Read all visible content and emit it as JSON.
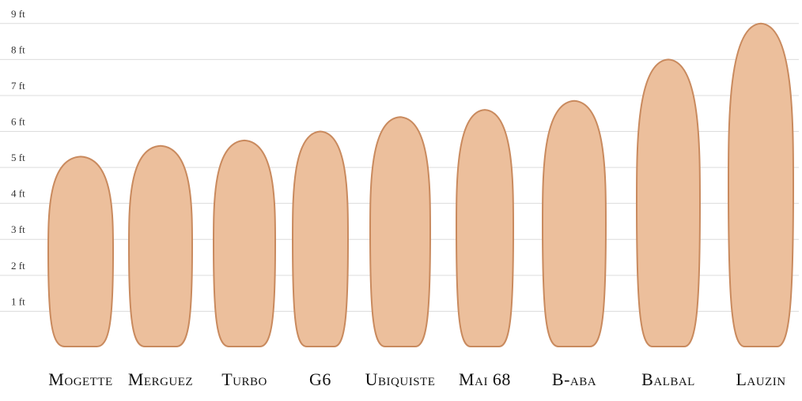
{
  "chart_data": {
    "type": "bar",
    "categories": [
      "Mogette",
      "Merguez",
      "Turbo",
      "G6",
      "Ubiquiste",
      "Mai 68",
      "B-aba",
      "Balbal",
      "Lauzin"
    ],
    "values": [
      5.3,
      5.6,
      5.75,
      6.0,
      6.4,
      6.6,
      6.85,
      8.0,
      9.0
    ],
    "color": "#ecbf9c",
    "ylim": [
      0,
      9.5
    ],
    "yticks": [
      {
        "value": 1,
        "label": "1 ft"
      },
      {
        "value": 2,
        "label": "2 ft"
      },
      {
        "value": 3,
        "label": "3 ft"
      },
      {
        "value": 4,
        "label": "4 ft"
      },
      {
        "value": 5,
        "label": "5 ft"
      },
      {
        "value": 6,
        "label": "6 ft"
      },
      {
        "value": 7,
        "label": "7 ft"
      },
      {
        "value": 8,
        "label": "8 ft"
      },
      {
        "value": 9,
        "label": "9 ft"
      }
    ],
    "grid": true
  }
}
